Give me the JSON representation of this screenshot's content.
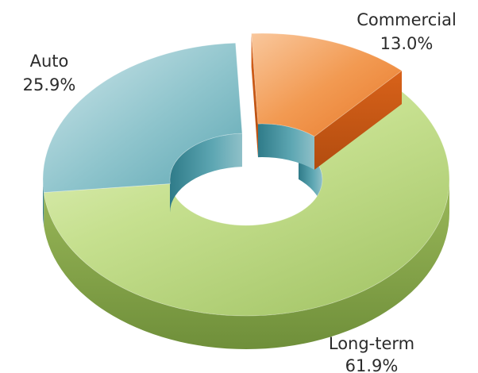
{
  "chart_data": {
    "type": "pie",
    "style": "3d-donut",
    "slices": [
      {
        "label": "Commercial",
        "value_label": "13.0%",
        "value": 13.0,
        "color": "#f08a3c",
        "exploded": true
      },
      {
        "label": "Long-term",
        "value_label": "61.9%",
        "value": 61.9,
        "color": "#b9d77a",
        "exploded": false
      },
      {
        "label": "Auto",
        "value_label": "25.9%",
        "value": 25.9,
        "color": "#7fbcc6",
        "exploded": false
      }
    ]
  }
}
